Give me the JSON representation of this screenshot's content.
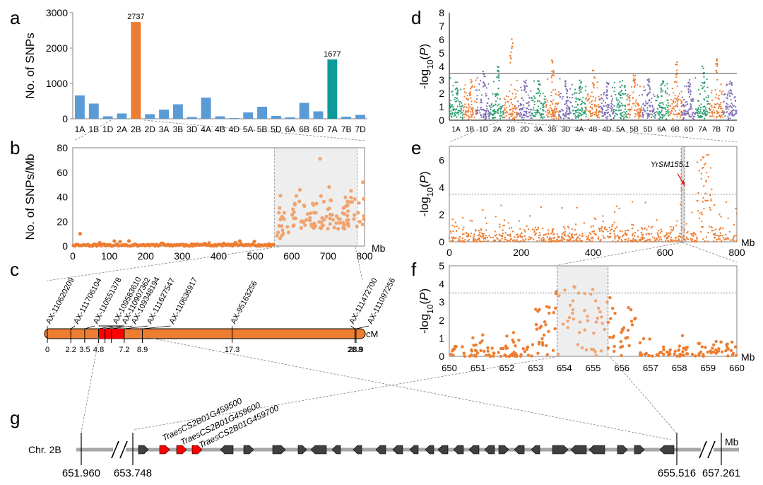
{
  "panels": {
    "a": "a",
    "b": "b",
    "c": "c",
    "d": "d",
    "e": "e",
    "f": "f",
    "g": "g"
  },
  "colors": {
    "blue": "#5b9bd5",
    "orange": "#ed7d31",
    "teal": "#0e9a9a",
    "green": "#2e9e72",
    "purple": "#7f6fb3",
    "red": "#ff0000",
    "gene": "#404040",
    "grey_band": "#d9d9d9",
    "chrom_line": "#a6a6a6"
  },
  "chart_data": [
    {
      "id": "a",
      "type": "bar",
      "ylabel": "No. of SNPs",
      "ylim": [
        0,
        3000
      ],
      "yticks": [
        0,
        1000,
        2000,
        3000
      ],
      "categories": [
        "1A",
        "1B",
        "1D",
        "2A",
        "2B",
        "2D",
        "3A",
        "3B",
        "3D",
        "4A",
        "4B",
        "4D",
        "5A",
        "5B",
        "5D",
        "6A",
        "6B",
        "6D",
        "7A",
        "7B",
        "7D"
      ],
      "values": [
        660,
        430,
        70,
        150,
        2737,
        130,
        260,
        410,
        50,
        600,
        70,
        20,
        180,
        340,
        80,
        40,
        450,
        210,
        1677,
        60,
        110
      ],
      "highlight": {
        "2B": "orange",
        "7A": "teal"
      },
      "data_labels": {
        "2B": "2737",
        "7A": "1677"
      }
    },
    {
      "id": "b",
      "type": "scatter",
      "ylabel": "No. of SNPs/Mb",
      "xlabel": "Mb",
      "xlim": [
        0,
        800
      ],
      "ylim": [
        0,
        80
      ],
      "xticks": [
        0,
        100,
        200,
        300,
        400,
        500,
        600,
        700,
        800
      ],
      "yticks": [
        0,
        20,
        40,
        60,
        80
      ],
      "shaded_region": [
        553,
        780
      ]
    },
    {
      "id": "c",
      "type": "genetic_map",
      "unit": "cM",
      "markers": [
        {
          "name": "AX-110620209",
          "cM": 0,
          "tick": "0"
        },
        {
          "name": "AX-111706104",
          "cM": 2.2,
          "tick": "2.2"
        },
        {
          "name": "AX-110551378",
          "cM": 3.5,
          "tick": "3.5"
        },
        {
          "name": "AX-109583610",
          "cM": 4.8,
          "tick": "4.8"
        },
        {
          "name": "AX-110907362",
          "cM": 5.4,
          "tick": ""
        },
        {
          "name": "AX-109348194",
          "cM": 6.0,
          "tick": ""
        },
        {
          "name": "AX-111627547",
          "cM": 7.2,
          "tick": "7.2"
        },
        {
          "name": "AX-110636917",
          "cM": 8.9,
          "tick": "8.9"
        },
        {
          "name": "AX-95163256",
          "cM": 17.3,
          "tick": "17.3"
        },
        {
          "name": "AX-111472700",
          "cM": 28.8,
          "tick": "28.8"
        },
        {
          "name": "AX-111097256",
          "cM": 28.9,
          "tick": "28.9"
        }
      ],
      "interval": [
        4.8,
        7.2
      ],
      "max": 29.5
    },
    {
      "id": "d",
      "type": "scatter",
      "ylabel": "-log10(P)",
      "ylim": [
        0,
        8
      ],
      "yticks": [
        0,
        1,
        2,
        3,
        4,
        5,
        6,
        7,
        8
      ],
      "categories": [
        "1A",
        "1B",
        "1D",
        "2A",
        "2B",
        "2D",
        "3A",
        "3B",
        "3D",
        "4A",
        "4B",
        "4D",
        "5A",
        "5B",
        "5D",
        "6A",
        "6B",
        "6D",
        "7A",
        "7B",
        "7D"
      ],
      "threshold": 3.5
    },
    {
      "id": "e",
      "type": "scatter",
      "ylabel": "-log10(P)",
      "xlabel": "Mb",
      "xlim": [
        0,
        800
      ],
      "ylim": [
        0,
        7
      ],
      "xticks": [
        0,
        200,
        400,
        600,
        800
      ],
      "yticks": [
        0,
        2,
        4,
        6
      ],
      "threshold": 3.5,
      "shaded_region": [
        645,
        655
      ],
      "annotation": "YrSM155.1"
    },
    {
      "id": "f",
      "type": "scatter",
      "ylabel": "-log10(P)",
      "xlabel": "Mb",
      "xlim": [
        650,
        660
      ],
      "ylim": [
        0,
        5
      ],
      "xticks": [
        650,
        651,
        652,
        653,
        654,
        655,
        656,
        657,
        658,
        659,
        660
      ],
      "yticks": [
        0,
        1,
        2,
        3,
        4,
        5
      ],
      "threshold": 3.5,
      "shaded_region": [
        653.75,
        655.52
      ]
    },
    {
      "id": "g",
      "type": "gene_map",
      "chrom_label": "Chr. 2B",
      "unit": "Mb",
      "positions": [
        "651.960",
        "653.748",
        "655.516",
        "657.261"
      ],
      "genes": [
        "TraesCS2B01G459500",
        "TraesCS2B01G459600",
        "TraesCS2B01G459700"
      ]
    }
  ]
}
